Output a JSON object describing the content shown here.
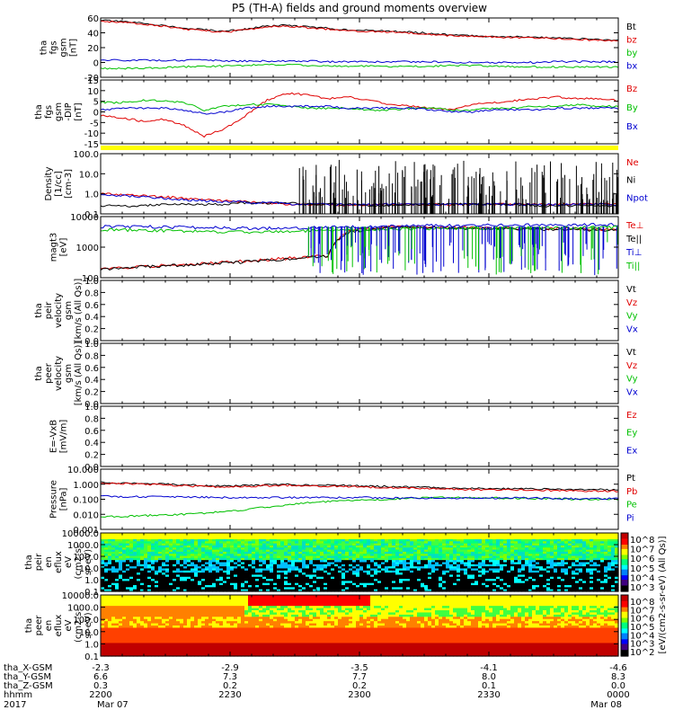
{
  "title": "P5 (TH-A) fields and ground moments overview",
  "chart_data": [
    {
      "type": "line",
      "ylabel": [
        "tha",
        "fgs",
        "gsm",
        "[nT]"
      ],
      "yticks": [
        "60",
        "40",
        "20",
        "0",
        "-20"
      ],
      "ylim": [
        -20,
        60
      ],
      "legend": [
        {
          "name": "Bt",
          "color": "#000000"
        },
        {
          "name": "bz",
          "color": "#e00000"
        },
        {
          "name": "by",
          "color": "#00c000"
        },
        {
          "name": "bx",
          "color": "#0000d0"
        }
      ],
      "series": [
        {
          "name": "Bt",
          "color": "#000000",
          "values": [
            57,
            55,
            53,
            50,
            46,
            44,
            42,
            45,
            49,
            50,
            48,
            46,
            44,
            43,
            42,
            41,
            39,
            37,
            36,
            35,
            35,
            34,
            33,
            32,
            31,
            30
          ]
        },
        {
          "name": "bz",
          "color": "#e00000",
          "values": [
            56,
            54,
            52,
            49,
            45,
            43,
            41,
            44,
            48,
            49,
            47,
            45,
            43,
            42,
            41,
            40,
            38,
            36,
            35,
            34,
            34,
            33,
            32,
            31,
            30,
            29
          ]
        },
        {
          "name": "by",
          "color": "#00c000",
          "values": [
            -8,
            -8,
            -8,
            -7,
            -6,
            -5,
            -5,
            -4,
            -3,
            -3,
            -4,
            -5,
            -5,
            -5,
            -6,
            -5,
            -5,
            -4,
            -4,
            -5,
            -6,
            -6,
            -6,
            -6,
            -6,
            -6
          ]
        },
        {
          "name": "bx",
          "color": "#0000d0",
          "values": [
            3,
            3,
            3,
            3,
            3,
            3,
            2,
            2,
            2,
            2,
            2,
            1,
            1,
            1,
            1,
            1,
            1,
            0,
            0,
            0,
            0,
            0,
            1,
            1,
            1,
            1
          ]
        }
      ]
    },
    {
      "type": "line",
      "ylabel": [
        "tha",
        "fgs",
        "gsm",
        "-DIP",
        "[nT]"
      ],
      "yticks": [
        "15",
        "10",
        "5",
        "0",
        "-5",
        "-10",
        "-15"
      ],
      "ylim": [
        -18,
        16
      ],
      "legend": [
        {
          "name": "Bz",
          "color": "#e00000"
        },
        {
          "name": "By",
          "color": "#00c000"
        },
        {
          "name": "Bx",
          "color": "#0000d0"
        }
      ],
      "series": [
        {
          "name": "Bz",
          "color": "#e00000",
          "values": [
            -3,
            -4,
            -6,
            -5,
            -8,
            -14,
            -10,
            -3,
            5,
            9,
            8,
            6,
            7,
            5,
            3,
            2,
            1,
            0,
            3,
            4,
            5,
            6,
            7,
            6,
            6,
            5
          ]
        },
        {
          "name": "By",
          "color": "#00c000",
          "values": [
            4,
            4,
            5,
            5,
            4,
            0,
            2,
            3,
            3,
            2,
            1,
            1,
            1,
            0,
            0,
            1,
            1,
            0,
            0,
            1,
            1,
            2,
            2,
            3,
            2,
            2
          ]
        },
        {
          "name": "Bx",
          "color": "#0000d0",
          "values": [
            0,
            1,
            1,
            1,
            0,
            -2,
            -1,
            1,
            2,
            2,
            2,
            2,
            1,
            1,
            1,
            1,
            0,
            -1,
            -1,
            0,
            0,
            0,
            1,
            1,
            1,
            1
          ]
        }
      ]
    },
    {
      "type": "line",
      "log": true,
      "ylabel": [
        "Density",
        "[1/cc]",
        "[cm-3]"
      ],
      "yticks": [
        "100.0",
        "10.0",
        "1.0",
        "0.1"
      ],
      "ylim": [
        0.1,
        100
      ],
      "legend": [
        {
          "name": "Ne",
          "color": "#e00000"
        },
        {
          "name": "Ni",
          "color": "#000000"
        },
        {
          "name": "Npot",
          "color": "#0000d0"
        }
      ],
      "series": [
        {
          "name": "Ne",
          "color": "#e00000",
          "values": [
            1.0,
            0.9,
            0.8,
            0.7,
            0.6,
            0.5,
            0.45,
            0.4,
            0.35,
            0.3,
            0.3,
            0.28,
            0.28,
            0.28,
            0.3,
            0.3,
            0.3,
            0.28,
            0.3,
            0.3,
            0.3,
            0.3,
            0.28,
            0.3,
            0.3,
            0.3
          ]
        },
        {
          "name": "Ni",
          "color": "#000000",
          "values": [
            0.25,
            0.25,
            0.25,
            0.3,
            0.3,
            0.3,
            0.3,
            0.35,
            0.35,
            0.35,
            0.3,
            0.3,
            0.3,
            0.25,
            0.25,
            0.3,
            0.3,
            0.3,
            0.3,
            0.3,
            0.3,
            0.25,
            0.25,
            0.25,
            0.25,
            0.25
          ]
        },
        {
          "name": "Npot",
          "color": "#0000d0",
          "values": [
            0.9,
            0.8,
            0.7,
            0.6,
            0.5,
            0.45,
            0.4,
            0.38,
            0.35,
            0.32,
            0.3,
            0.3,
            0.3,
            0.3,
            0.3,
            0.3,
            0.3,
            0.3,
            0.3,
            0.3,
            0.3,
            0.3,
            0.3,
            0.3,
            0.3,
            0.3
          ]
        }
      ]
    },
    {
      "type": "line",
      "log": true,
      "ylabel": [
        "magt3",
        "[eV]"
      ],
      "yticks": [
        "10000",
        "1000",
        "100"
      ],
      "ylim": [
        40,
        10000
      ],
      "legend": [
        {
          "name": "Te⊥",
          "color": "#e00000"
        },
        {
          "name": "Te||",
          "color": "#000000"
        },
        {
          "name": "Ti⊥",
          "color": "#0000d0"
        },
        {
          "name": "Ti||",
          "color": "#00c000"
        }
      ],
      "series": [
        {
          "name": "Te⊥",
          "color": "#e00000",
          "values": [
            90,
            100,
            110,
            120,
            130,
            140,
            160,
            180,
            200,
            230,
            260,
            280,
            2500,
            3500,
            3800,
            4000,
            4000,
            3800,
            3600,
            3500,
            3500,
            3400,
            3300,
            3300,
            3200,
            3200
          ]
        },
        {
          "name": "Te||",
          "color": "#000000",
          "values": [
            85,
            95,
            105,
            115,
            125,
            135,
            150,
            170,
            190,
            220,
            250,
            270,
            2400,
            3300,
            3600,
            3800,
            3800,
            3600,
            3400,
            3300,
            3300,
            3200,
            3100,
            3100,
            3000,
            3000
          ]
        },
        {
          "name": "Ti⊥",
          "color": "#0000d0",
          "values": [
            4000,
            4100,
            4000,
            3900,
            3800,
            3700,
            3600,
            3500,
            3500,
            3600,
            3700,
            3800,
            4000,
            4100,
            4200,
            4300,
            4400,
            4400,
            4500,
            4500,
            4600,
            4600,
            4700,
            4700,
            4800,
            4800
          ]
        },
        {
          "name": "Ti||",
          "color": "#00c000",
          "values": [
            3000,
            3000,
            2900,
            2800,
            2700,
            2600,
            2500,
            2500,
            2500,
            2600,
            2700,
            2800,
            3000,
            3100,
            3200,
            3300,
            3400,
            3400,
            3500,
            3500,
            3600,
            3600,
            3700,
            3700,
            3800,
            3800
          ]
        }
      ]
    },
    {
      "type": "line",
      "ylabel": [
        "tha",
        "peir",
        "velocity",
        "gsm",
        "[km/s (All Qs)]"
      ],
      "yticks": [
        "1.0",
        "0.8",
        "0.6",
        "0.4",
        "0.2",
        "0.0"
      ],
      "ylim": [
        0,
        1
      ],
      "legend": [
        {
          "name": "Vt",
          "color": "#000000"
        },
        {
          "name": "Vz",
          "color": "#e00000"
        },
        {
          "name": "Vy",
          "color": "#00c000"
        },
        {
          "name": "Vx",
          "color": "#0000d0"
        }
      ],
      "series": []
    },
    {
      "type": "line",
      "ylabel": [
        "tha",
        "peer",
        "velocity",
        "gsm",
        "[km/s (All Qs)]"
      ],
      "yticks": [
        "1.0",
        "0.8",
        "0.6",
        "0.4",
        "0.2",
        "0.0"
      ],
      "ylim": [
        0,
        1
      ],
      "legend": [
        {
          "name": "Vt",
          "color": "#000000"
        },
        {
          "name": "Vz",
          "color": "#e00000"
        },
        {
          "name": "Vy",
          "color": "#00c000"
        },
        {
          "name": "Vx",
          "color": "#0000d0"
        }
      ],
      "series": []
    },
    {
      "type": "line",
      "ylabel": [
        "E=-VxB",
        "[mV/m]"
      ],
      "yticks": [
        "1.0",
        "0.8",
        "0.6",
        "0.4",
        "0.2",
        "0.0"
      ],
      "ylim": [
        0,
        1
      ],
      "legend": [
        {
          "name": "Ez",
          "color": "#e00000"
        },
        {
          "name": "Ey",
          "color": "#00c000"
        },
        {
          "name": "Ex",
          "color": "#0000d0"
        }
      ],
      "series": []
    },
    {
      "type": "line",
      "log": true,
      "ylabel": [
        "Pressure",
        "[nPa]"
      ],
      "yticks": [
        "10.000",
        "1.000",
        "0.100",
        "0.010",
        "0.001"
      ],
      "ylim": [
        0.001,
        10
      ],
      "legend": [
        {
          "name": "Pt",
          "color": "#000000"
        },
        {
          "name": "Pb",
          "color": "#e00000"
        },
        {
          "name": "Pe",
          "color": "#00c000"
        },
        {
          "name": "Pi",
          "color": "#0000d0"
        }
      ],
      "series": [
        {
          "name": "Pt",
          "color": "#000000",
          "values": [
            1.3,
            1.2,
            1.1,
            1.0,
            0.9,
            0.8,
            0.75,
            0.8,
            0.9,
            0.95,
            0.9,
            0.85,
            0.8,
            0.75,
            0.7,
            0.65,
            0.6,
            0.55,
            0.55,
            0.5,
            0.5,
            0.48,
            0.46,
            0.45,
            0.43,
            0.42
          ]
        },
        {
          "name": "Pb",
          "color": "#e00000",
          "values": [
            1.2,
            1.1,
            1.0,
            0.9,
            0.8,
            0.7,
            0.65,
            0.7,
            0.8,
            0.85,
            0.8,
            0.75,
            0.7,
            0.65,
            0.6,
            0.55,
            0.5,
            0.45,
            0.45,
            0.42,
            0.42,
            0.4,
            0.38,
            0.37,
            0.35,
            0.34
          ]
        },
        {
          "name": "Pe",
          "color": "#00c000",
          "values": [
            0.007,
            0.007,
            0.008,
            0.009,
            0.01,
            0.012,
            0.015,
            0.02,
            0.03,
            0.04,
            0.06,
            0.07,
            0.08,
            0.09,
            0.1,
            0.12,
            0.13,
            0.13,
            0.12,
            0.12,
            0.12,
            0.11,
            0.11,
            0.1,
            0.1,
            0.1
          ]
        },
        {
          "name": "Pi",
          "color": "#0000d0",
          "values": [
            0.16,
            0.15,
            0.15,
            0.14,
            0.14,
            0.14,
            0.13,
            0.13,
            0.13,
            0.13,
            0.13,
            0.13,
            0.13,
            0.13,
            0.12,
            0.12,
            0.12,
            0.12,
            0.12,
            0.12,
            0.12,
            0.12,
            0.11,
            0.11,
            0.11,
            0.11
          ]
        }
      ]
    },
    {
      "type": "heatmap",
      "ylabel": [
        "tha",
        "peir",
        "en",
        "eflux",
        "eV",
        "(cm2-s-",
        "sr-eV)"
      ],
      "yticks": [
        "10000.0",
        "1000.0",
        "100.0",
        "10.0",
        "1.0",
        "0.1"
      ],
      "ylim": [
        0.1,
        20000
      ]
    },
    {
      "type": "heatmap",
      "ylabel": [
        "tha",
        "peer",
        "en",
        "eflux",
        "eV",
        "(cm2-s-",
        "sr-eV)"
      ],
      "yticks": [
        "10000.0",
        "1000.0",
        "100.0",
        "10.0",
        "1.0",
        "0.1"
      ],
      "ylim": [
        0.1,
        20000
      ]
    }
  ],
  "colorbar": {
    "label": "[eV/(cm2-s-sr-eV) (All Qs)]",
    "upper_ticks": [
      "10^8",
      "10^7",
      "10^6",
      "10^5",
      "10^4",
      "10^3"
    ],
    "lower_ticks": [
      "10^8",
      "10^7",
      "10^6",
      "10^5",
      "10^4",
      "10^3",
      "10^2"
    ]
  },
  "x_axis": {
    "row_labels": [
      "tha_X-GSM",
      "tha_Y-GSM",
      "tha_Z-GSM",
      "hhmm",
      "2017"
    ],
    "ticks": [
      {
        "values": [
          "-2.3",
          "6.6",
          "0.3",
          "2200",
          "Mar 07"
        ]
      },
      {
        "values": [
          "-2.9",
          "7.3",
          "0.2",
          "2230",
          ""
        ]
      },
      {
        "values": [
          "-3.5",
          "7.7",
          "0.2",
          "2300",
          ""
        ]
      },
      {
        "values": [
          "-4.1",
          "8.0",
          "0.1",
          "2330",
          ""
        ]
      },
      {
        "values": [
          "-4.6",
          "8.3",
          "0.0",
          "0000",
          "Mar 08"
        ]
      }
    ]
  }
}
